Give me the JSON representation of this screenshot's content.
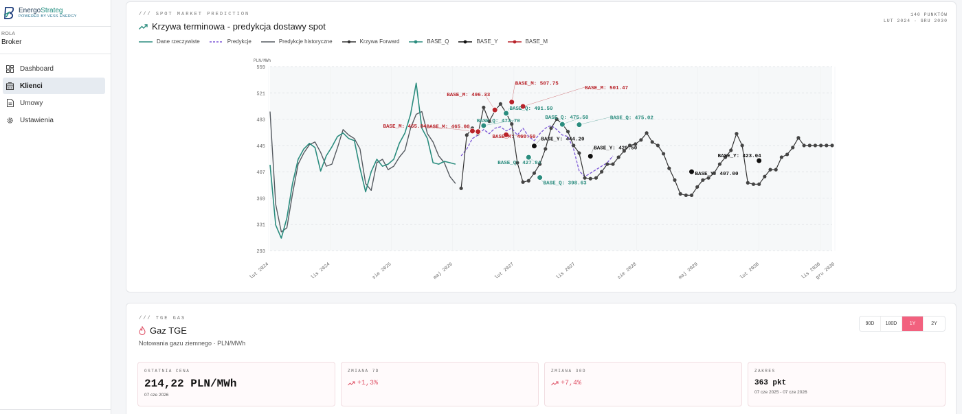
{
  "sidebar": {
    "brand": {
      "name_part1": "Energo",
      "name_part2": "Strateg",
      "tagline": "POWERED BY VESS ENERGY"
    },
    "role": {
      "label": "ROLA",
      "value": "Broker"
    },
    "items": [
      {
        "label": "Dashboard",
        "icon": "dashboard-icon"
      },
      {
        "label": "Klienci",
        "icon": "building-icon",
        "active": true
      },
      {
        "label": "Umowy",
        "icon": "document-icon"
      },
      {
        "label": "Ustawienia",
        "icon": "gear-icon"
      }
    ]
  },
  "forecast_card": {
    "kicker": "/// SPOT MARKET PREDICTION",
    "title": "Krzywa terminowa - predykcja dostawy spot",
    "points": "140 PUNKTÓW",
    "range": "LUT 2024 - GRU 2030",
    "legend": [
      "Dane rzeczywiste",
      "Predykcje",
      "Predykcje historyczne",
      "Krzywa Forward",
      "BASE_Q",
      "BASE_Y",
      "BASE_M"
    ]
  },
  "colors": {
    "actual": "#2a8c7e",
    "prediction": "#7b55d6",
    "historical": "#555a60",
    "forward": "#333333",
    "base_q": "#2a8c7e",
    "base_y": "#111111",
    "base_m": "#b8232a",
    "accent": "#f2617e"
  },
  "chart_data": {
    "type": "line",
    "ylabel": "PLN/MWh",
    "ylim": [
      293,
      559
    ],
    "yticks": [
      559,
      521,
      483,
      445,
      407,
      369,
      331,
      293
    ],
    "xticks": [
      "lut 2024",
      "lis 2024",
      "sie 2025",
      "maj 2026",
      "lut 2027",
      "lis 2027",
      "sie 2028",
      "maj 2029",
      "lut 2030",
      "lis 2030",
      "gru 2030"
    ],
    "xlim": [
      0,
      100
    ],
    "series": [
      {
        "name": "Dane rzeczywiste",
        "key": "actual",
        "style": "line",
        "x": [
          0,
          1,
          2,
          3,
          4,
          5,
          6,
          7,
          8,
          9,
          10,
          11,
          12,
          13,
          14,
          15,
          16,
          17,
          18,
          19,
          20,
          21,
          22,
          23,
          24,
          25,
          26,
          27,
          28,
          29,
          30,
          31,
          32,
          33
        ],
        "y": [
          417,
          330,
          311,
          340,
          390,
          425,
          440,
          448,
          442,
          408,
          430,
          443,
          458,
          463,
          455,
          452,
          412,
          378,
          407,
          425,
          415,
          418,
          425,
          448,
          463,
          490,
          535,
          470,
          455,
          420,
          418,
          422,
          420,
          418
        ]
      },
      {
        "name": "Predykcje",
        "key": "prediction",
        "style": "dashed",
        "x": [
          34,
          35,
          36,
          37,
          38,
          39,
          40,
          41,
          42,
          43,
          44,
          45,
          46,
          47,
          48,
          49,
          50,
          51,
          52,
          53,
          54,
          55,
          56,
          57,
          58,
          59,
          60,
          61
        ],
        "y": [
          430,
          440,
          455,
          460,
          468,
          462,
          470,
          472,
          466,
          470,
          460,
          470,
          458,
          452,
          462,
          470,
          474,
          468,
          460,
          458,
          440,
          408,
          400,
          405,
          410,
          415,
          420,
          430
        ]
      },
      {
        "name": "Predykcje historyczne",
        "key": "historical",
        "style": "line",
        "x": [
          0,
          1,
          2,
          3,
          4,
          5,
          6,
          7,
          8,
          9,
          10,
          11,
          12,
          13,
          14,
          15,
          16,
          17,
          18,
          19,
          20,
          21,
          22,
          23,
          24,
          25,
          26,
          27,
          28,
          29,
          30,
          31,
          32,
          33
        ],
        "y": [
          494,
          360,
          320,
          326,
          375,
          418,
          434,
          446,
          450,
          435,
          415,
          418,
          442,
          468,
          460,
          455,
          440,
          390,
          380,
          420,
          425,
          410,
          415,
          428,
          438,
          470,
          490,
          494,
          462,
          450,
          430,
          420,
          400,
          390
        ]
      },
      {
        "name": "Krzywa Forward",
        "key": "forward",
        "style": "line-markers",
        "x": [
          34,
          35,
          36,
          37,
          38,
          39,
          40,
          41,
          42,
          43,
          44,
          45,
          46,
          47,
          48,
          49,
          50,
          51,
          52,
          53,
          54,
          55,
          56,
          57,
          58,
          59,
          60,
          61,
          62,
          63,
          64,
          65,
          66,
          67,
          68,
          69,
          70,
          71,
          72,
          73,
          74,
          75,
          76,
          77,
          78,
          79,
          80,
          81,
          82,
          83,
          84,
          85,
          86,
          87,
          88,
          89,
          90,
          91,
          92,
          93,
          94,
          95,
          96,
          97,
          98,
          99,
          100
        ],
        "y": [
          383,
          460,
          470,
          462,
          500,
          480,
          495,
          505,
          492,
          476,
          420,
          392,
          394,
          405,
          418,
          440,
          470,
          483,
          476,
          465,
          445,
          434,
          398,
          397,
          398,
          407,
          418,
          418,
          428,
          437,
          445,
          447,
          453,
          463,
          450,
          445,
          433,
          412,
          395,
          375,
          373,
          373,
          385,
          395,
          398,
          405,
          418,
          428,
          438,
          462,
          445,
          391,
          389,
          389,
          400,
          410,
          410,
          428,
          432,
          442,
          456,
          445,
          445,
          445,
          445,
          445,
          445
        ]
      }
    ],
    "markers": [
      {
        "series": "BASE_M",
        "x": 36,
        "y": 465.84,
        "label": "BASE_M: 465.84"
      },
      {
        "series": "BASE_M",
        "x": 37,
        "y": 465.0,
        "label": "BASE_M: 465.00"
      },
      {
        "series": "BASE_M",
        "x": 40,
        "y": 496.33,
        "label": "BASE_M: 496.33"
      },
      {
        "series": "BASE_M",
        "x": 42,
        "y": 460.5,
        "label": "BASE_M: 460.50"
      },
      {
        "series": "BASE_M",
        "x": 43,
        "y": 507.75,
        "label": "BASE_M: 507.75"
      },
      {
        "series": "BASE_M",
        "x": 45,
        "y": 501.47,
        "label": "BASE_M: 501.47"
      },
      {
        "series": "BASE_Q",
        "x": 38,
        "y": 473.7,
        "label": "BASE_Q: 473.70"
      },
      {
        "series": "BASE_Q",
        "x": 42,
        "y": 491.5,
        "label": "BASE_Q: 491.50"
      },
      {
        "series": "BASE_Q",
        "x": 46,
        "y": 427.84,
        "label": "BASE_Q: 427.84"
      },
      {
        "series": "BASE_Q",
        "x": 48,
        "y": 398.63,
        "label": "BASE_Q: 398.63"
      },
      {
        "series": "BASE_Q",
        "x": 52,
        "y": 475.5,
        "label": "BASE_Q: 475.50"
      },
      {
        "series": "BASE_Q",
        "x": 55,
        "y": 475.02,
        "label": "BASE_Q: 475.02"
      },
      {
        "series": "BASE_Y",
        "x": 47,
        "y": 444.2,
        "label": "BASE_Y: 444.20"
      },
      {
        "series": "BASE_Y",
        "x": 57,
        "y": 429.5,
        "label": "BASE_Y: 429.50"
      },
      {
        "series": "BASE_Y",
        "x": 75,
        "y": 407.0,
        "label": "BASE_Y: 407.00"
      },
      {
        "series": "BASE_Y",
        "x": 87,
        "y": 423.04,
        "label": "BASE_Y: 423.04"
      }
    ],
    "grid": true
  },
  "gas_card": {
    "kicker": "/// TGE GAS",
    "title": "Gaz TGE",
    "subtitle": "Notowania gazu ziemnego · PLN/MWh",
    "ranges": [
      "90D",
      "180D",
      "1Y",
      "2Y"
    ],
    "active_range": "1Y",
    "stats": [
      {
        "label": "OSTATNIA CENA",
        "value": "214,22 PLN/MWh",
        "sub": "07 cze 2026"
      },
      {
        "label": "ZMIANA 7D",
        "value": "+1,3%"
      },
      {
        "label": "ZMIANA 30D",
        "value": "+7,4%"
      },
      {
        "label": "ZAKRES",
        "value": "363 pkt",
        "sub": "07 cze 2025 - 07 cze 2026"
      }
    ]
  }
}
